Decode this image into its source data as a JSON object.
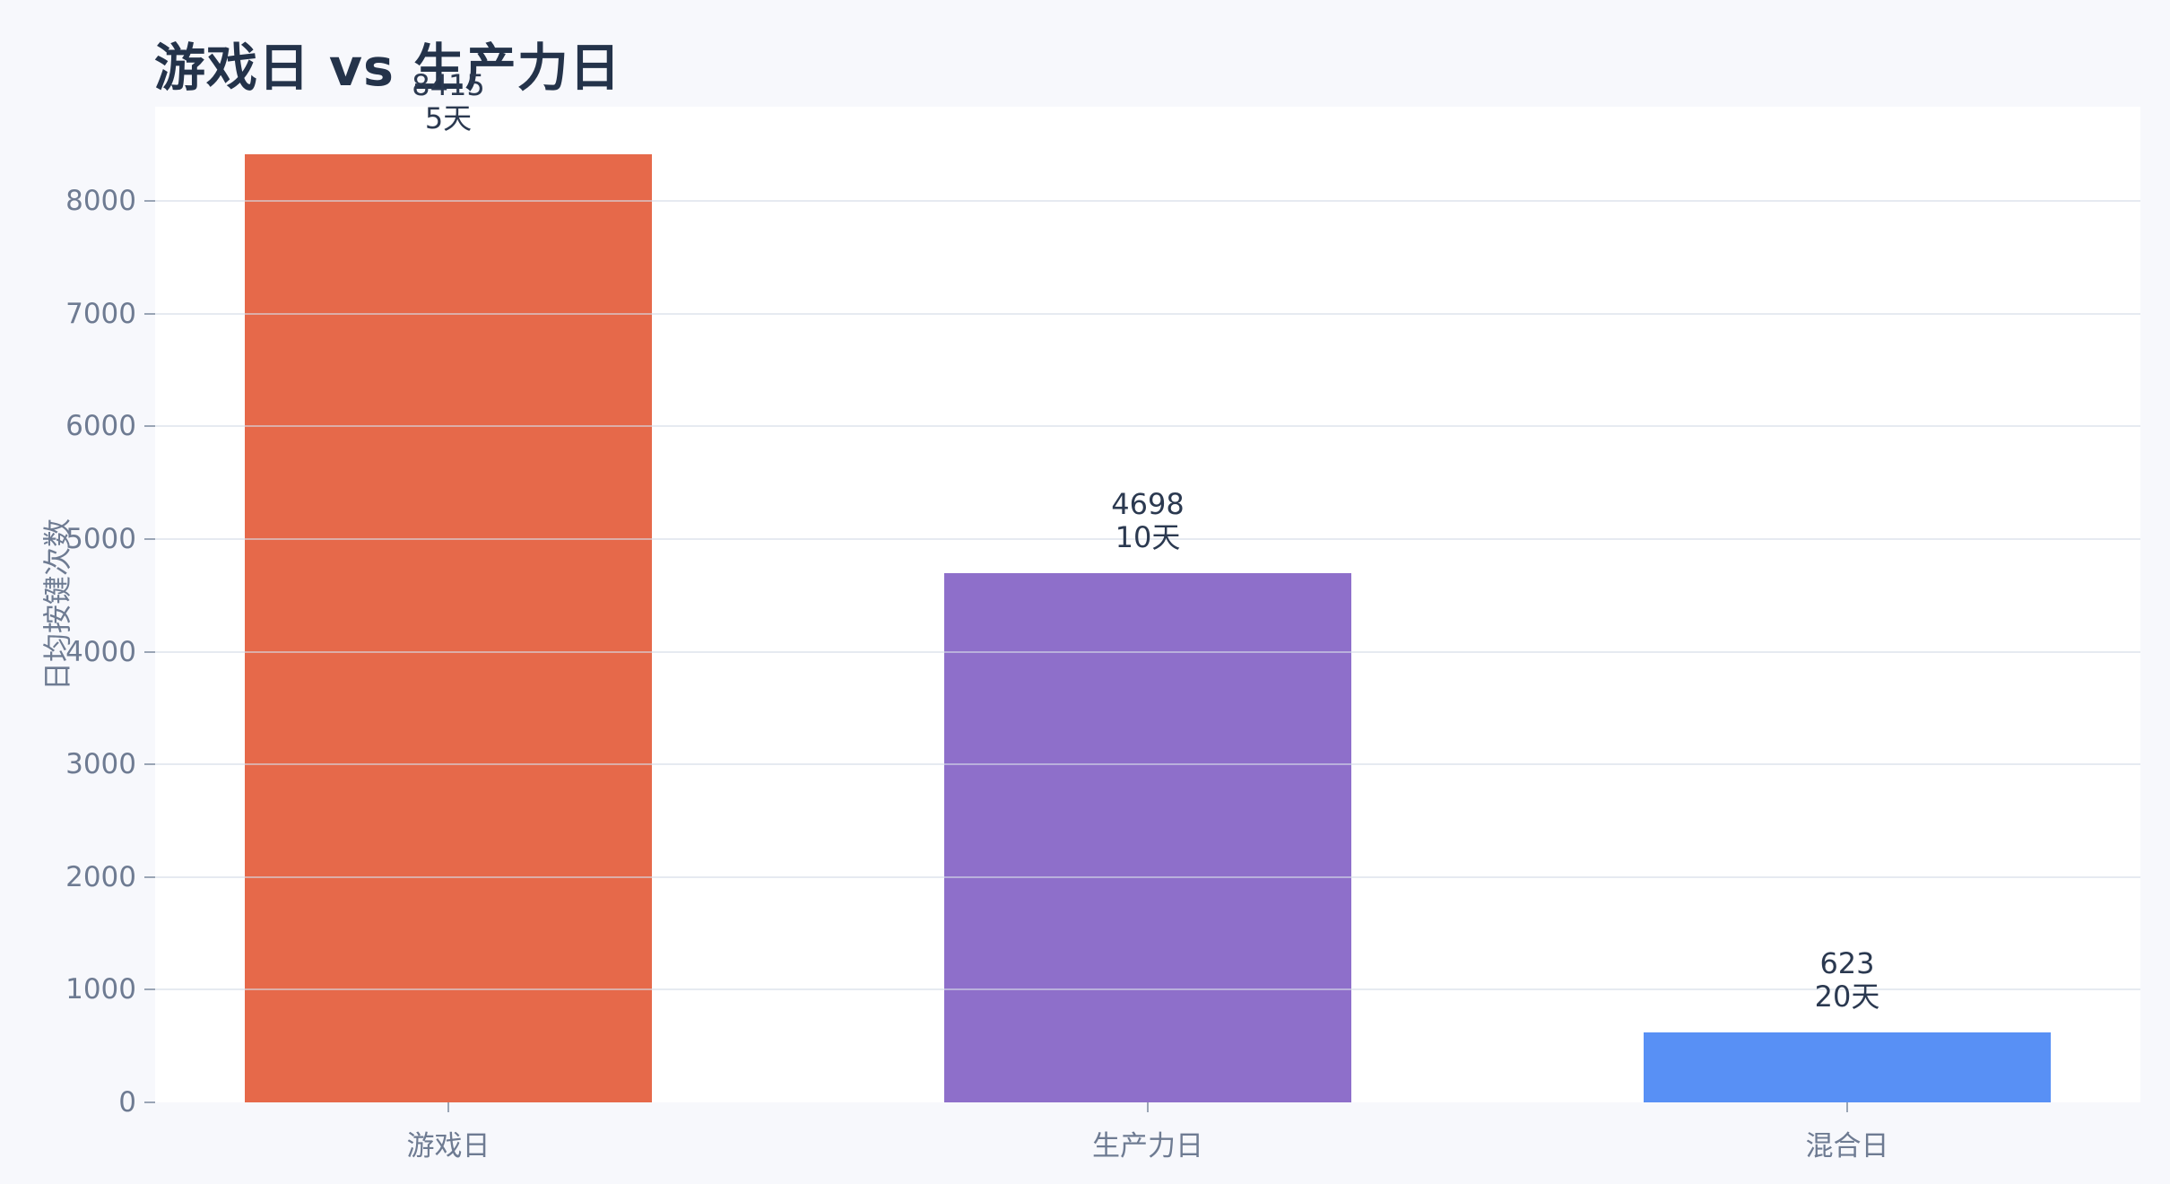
{
  "chart_data": {
    "type": "bar",
    "title": "游戏日 vs 生产力日",
    "xlabel": "",
    "ylabel": "日均按键次数",
    "categories": [
      "游戏日",
      "生产力日",
      "混合日"
    ],
    "values": [
      8415,
      4698,
      623
    ],
    "day_count_labels": [
      "5天",
      "10天",
      "20天"
    ],
    "bar_colors": [
      "#e6694a",
      "#8e6fca",
      "#5890f5"
    ],
    "yticks": [
      0,
      1000,
      2000,
      3000,
      4000,
      5000,
      6000,
      7000,
      8000
    ],
    "ylim": [
      0,
      8836
    ],
    "grid": "on",
    "legend": "none",
    "colors": {
      "page_background": "#f7f8fc",
      "plot_background": "#ffffff",
      "title_text": "#24334a",
      "axis_text": "#6e7b92",
      "value_label_text": "#2b3950"
    }
  }
}
